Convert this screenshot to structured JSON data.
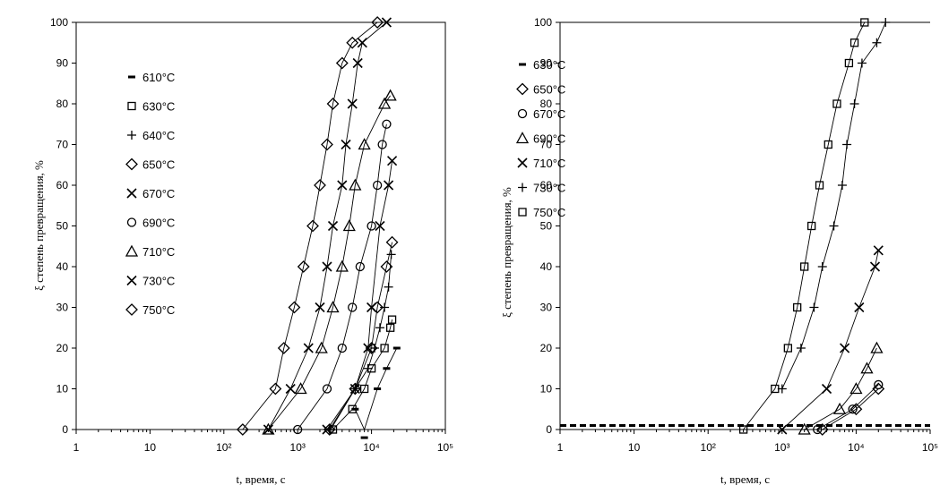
{
  "chart_data": [
    {
      "type": "scatter",
      "xlabel": "t, время, с",
      "ylabel": "ξ степень превращения, %",
      "xscale": "log",
      "xlim": [
        1,
        100000
      ],
      "ylim": [
        0,
        100
      ],
      "x_tick_labels": [
        "1",
        "10",
        "10²",
        "10³",
        "10⁴",
        "10⁵"
      ],
      "y_tick_labels": [
        "0",
        "10",
        "20",
        "30",
        "40",
        "50",
        "60",
        "70",
        "80",
        "90",
        "100"
      ],
      "grid": false,
      "legend_position": "top-left",
      "series": [
        {
          "name": "610°C",
          "marker": "dash",
          "points": [
            [
              6000,
              5
            ],
            [
              8000,
              -2
            ],
            [
              12000,
              10
            ],
            [
              16000,
              15
            ],
            [
              22000,
              20
            ]
          ]
        },
        {
          "name": "630°C",
          "marker": "square",
          "points": [
            [
              3000,
              0
            ],
            [
              5500,
              5
            ],
            [
              8000,
              10
            ],
            [
              10000,
              15
            ],
            [
              15000,
              20
            ],
            [
              18000,
              25
            ],
            [
              19000,
              27
            ]
          ]
        },
        {
          "name": "640°C",
          "marker": "plus",
          "points": [
            [
              2800,
              0
            ],
            [
              6000,
              10
            ],
            [
              9000,
              15
            ],
            [
              11000,
              20
            ],
            [
              13000,
              25
            ],
            [
              15000,
              30
            ],
            [
              17000,
              35
            ],
            [
              18500,
              43
            ]
          ]
        },
        {
          "name": "650°C",
          "marker": "diamond",
          "points": [
            [
              2700,
              0
            ],
            [
              6000,
              10
            ],
            [
              10000,
              20
            ],
            [
              12000,
              30
            ],
            [
              16000,
              40
            ],
            [
              19000,
              46
            ]
          ]
        },
        {
          "name": "670°C",
          "marker": "x",
          "points": [
            [
              2500,
              0
            ],
            [
              6000,
              10
            ],
            [
              9000,
              20
            ],
            [
              10000,
              30
            ],
            [
              13000,
              50
            ],
            [
              17000,
              60
            ],
            [
              19000,
              66
            ]
          ]
        },
        {
          "name": "690°C",
          "marker": "circle",
          "points": [
            [
              1000,
              0
            ],
            [
              2500,
              10
            ],
            [
              4000,
              20
            ],
            [
              5500,
              30
            ],
            [
              7000,
              40
            ],
            [
              10000,
              50
            ],
            [
              12000,
              60
            ],
            [
              14000,
              70
            ],
            [
              16000,
              75
            ]
          ]
        },
        {
          "name": "710°C",
          "marker": "triangle",
          "points": [
            [
              400,
              0
            ],
            [
              1100,
              10
            ],
            [
              2100,
              20
            ],
            [
              3000,
              30
            ],
            [
              4000,
              40
            ],
            [
              5000,
              50
            ],
            [
              6000,
              60
            ],
            [
              8000,
              70
            ],
            [
              15000,
              80
            ],
            [
              18000,
              82
            ]
          ]
        },
        {
          "name": "730°C",
          "marker": "x",
          "points": [
            [
              400,
              0
            ],
            [
              800,
              10
            ],
            [
              1400,
              20
            ],
            [
              2000,
              30
            ],
            [
              2500,
              40
            ],
            [
              3000,
              50
            ],
            [
              4000,
              60
            ],
            [
              4500,
              70
            ],
            [
              5500,
              80
            ],
            [
              6500,
              90
            ],
            [
              7500,
              95
            ],
            [
              16000,
              100
            ]
          ]
        },
        {
          "name": "750°C",
          "marker": "diamond",
          "points": [
            [
              180,
              0
            ],
            [
              500,
              10
            ],
            [
              650,
              20
            ],
            [
              900,
              30
            ],
            [
              1200,
              40
            ],
            [
              1600,
              50
            ],
            [
              2000,
              60
            ],
            [
              2500,
              70
            ],
            [
              3000,
              80
            ],
            [
              4000,
              90
            ],
            [
              5500,
              95
            ],
            [
              12000,
              100
            ]
          ]
        }
      ]
    },
    {
      "type": "scatter",
      "xlabel": "t, время, с",
      "ylabel": "ξ степень превращения, %",
      "xscale": "log",
      "xlim": [
        1,
        100000
      ],
      "ylim": [
        0,
        100
      ],
      "x_tick_labels": [
        "1",
        "10",
        "10²",
        "10³",
        "10⁴",
        "10⁵"
      ],
      "y_tick_labels": [
        "0",
        "10",
        "20",
        "30",
        "40",
        "50",
        "60",
        "70",
        "80",
        "90",
        "100"
      ],
      "grid": false,
      "legend_position": "top-left",
      "series": [
        {
          "name": "630°C",
          "marker": "dash",
          "points": [
            [
              1,
              1
            ],
            [
              100000,
              1
            ]
          ]
        },
        {
          "name": "650°C",
          "marker": "diamond",
          "points": [
            [
              3500,
              0
            ],
            [
              10000,
              5
            ],
            [
              20000,
              10
            ]
          ]
        },
        {
          "name": "670°C",
          "marker": "circle",
          "points": [
            [
              3000,
              0
            ],
            [
              9000,
              5
            ],
            [
              20000,
              11
            ]
          ]
        },
        {
          "name": "690°C",
          "marker": "triangle",
          "points": [
            [
              2000,
              0
            ],
            [
              6000,
              5
            ],
            [
              10000,
              10
            ],
            [
              14000,
              15
            ],
            [
              19000,
              20
            ]
          ]
        },
        {
          "name": "710°C",
          "marker": "x",
          "points": [
            [
              1000,
              0
            ],
            [
              4000,
              10
            ],
            [
              7000,
              20
            ],
            [
              11000,
              30
            ],
            [
              18000,
              40
            ],
            [
              20000,
              44
            ]
          ]
        },
        {
          "name": "730°C",
          "marker": "plus",
          "points": [
            [
              1000,
              10
            ],
            [
              1800,
              20
            ],
            [
              2700,
              30
            ],
            [
              3500,
              40
            ],
            [
              5000,
              50
            ],
            [
              6500,
              60
            ],
            [
              7500,
              70
            ],
            [
              9500,
              80
            ],
            [
              12000,
              90
            ],
            [
              19000,
              95
            ],
            [
              25000,
              100
            ]
          ]
        },
        {
          "name": "750°C",
          "marker": "square",
          "points": [
            [
              300,
              0
            ],
            [
              800,
              10
            ],
            [
              1200,
              20
            ],
            [
              1600,
              30
            ],
            [
              2000,
              40
            ],
            [
              2500,
              50
            ],
            [
              3200,
              60
            ],
            [
              4200,
              70
            ],
            [
              5500,
              80
            ],
            [
              8000,
              90
            ],
            [
              9500,
              95
            ],
            [
              13000,
              100
            ]
          ]
        }
      ]
    }
  ]
}
